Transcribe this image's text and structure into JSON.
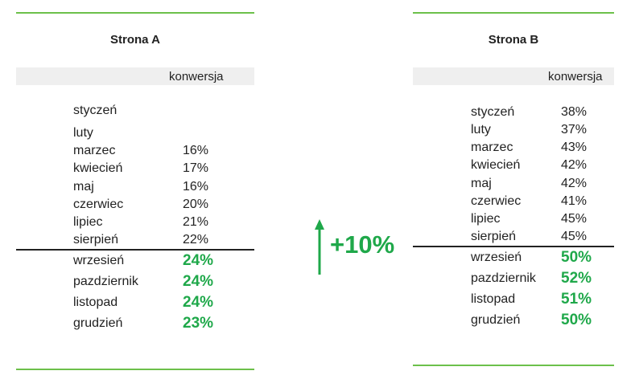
{
  "colors": {
    "accent": "#1fa84a",
    "rule": "#6cc04a",
    "header_bg": "#efefef"
  },
  "delta": {
    "label": "+10%",
    "icon": "arrow-up-icon"
  },
  "panels": [
    {
      "id": "a",
      "title": "Strona A",
      "column_header": "konwersja",
      "rows": [
        {
          "month": "styczeń",
          "value": "",
          "highlight": false
        },
        {
          "month": "luty",
          "value": "",
          "highlight": false
        },
        {
          "month": "marzec",
          "value": "16%",
          "highlight": false
        },
        {
          "month": "kwiecień",
          "value": "17%",
          "highlight": false
        },
        {
          "month": "maj",
          "value": "16%",
          "highlight": false
        },
        {
          "month": "czerwiec",
          "value": "20%",
          "highlight": false
        },
        {
          "month": "lipiec",
          "value": "21%",
          "highlight": false
        },
        {
          "month": "sierpień",
          "value": "22%",
          "highlight": false
        },
        {
          "month": "wrzesień",
          "value": "24%",
          "highlight": true
        },
        {
          "month": "pazdziernik",
          "value": "24%",
          "highlight": true
        },
        {
          "month": "listopad",
          "value": "24%",
          "highlight": true
        },
        {
          "month": "grudzień",
          "value": "23%",
          "highlight": true
        }
      ]
    },
    {
      "id": "b",
      "title": "Strona B",
      "column_header": "konwersja",
      "rows": [
        {
          "month": "styczeń",
          "value": "38%",
          "highlight": false
        },
        {
          "month": "luty",
          "value": "37%",
          "highlight": false
        },
        {
          "month": "marzec",
          "value": "43%",
          "highlight": false
        },
        {
          "month": "kwiecień",
          "value": "42%",
          "highlight": false
        },
        {
          "month": "maj",
          "value": "42%",
          "highlight": false
        },
        {
          "month": "czerwiec",
          "value": "41%",
          "highlight": false
        },
        {
          "month": "lipiec",
          "value": "45%",
          "highlight": false
        },
        {
          "month": "sierpień",
          "value": "45%",
          "highlight": false
        },
        {
          "month": "wrzesień",
          "value": "50%",
          "highlight": true
        },
        {
          "month": "pazdziernik",
          "value": "52%",
          "highlight": true
        },
        {
          "month": "listopad",
          "value": "51%",
          "highlight": true
        },
        {
          "month": "grudzień",
          "value": "50%",
          "highlight": true
        }
      ]
    }
  ]
}
